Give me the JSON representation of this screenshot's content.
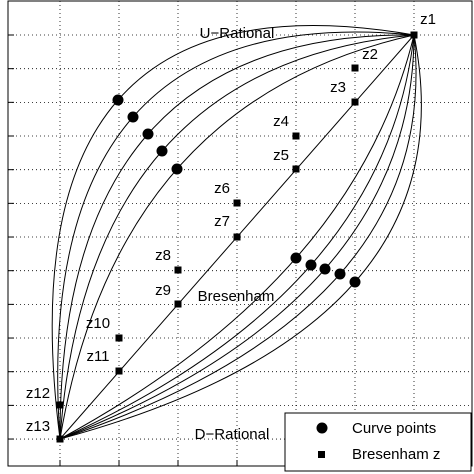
{
  "curve_labels": {
    "upper": "U−Rational",
    "lower": "D−Rational",
    "middle": "Bresenham"
  },
  "points": [
    "z1",
    "z2",
    "z3",
    "z4",
    "z5",
    "z6",
    "z7",
    "z8",
    "z9",
    "z10",
    "z11",
    "z12",
    "z13"
  ],
  "legend": [
    "Curve points",
    "Bresenham z"
  ]
}
